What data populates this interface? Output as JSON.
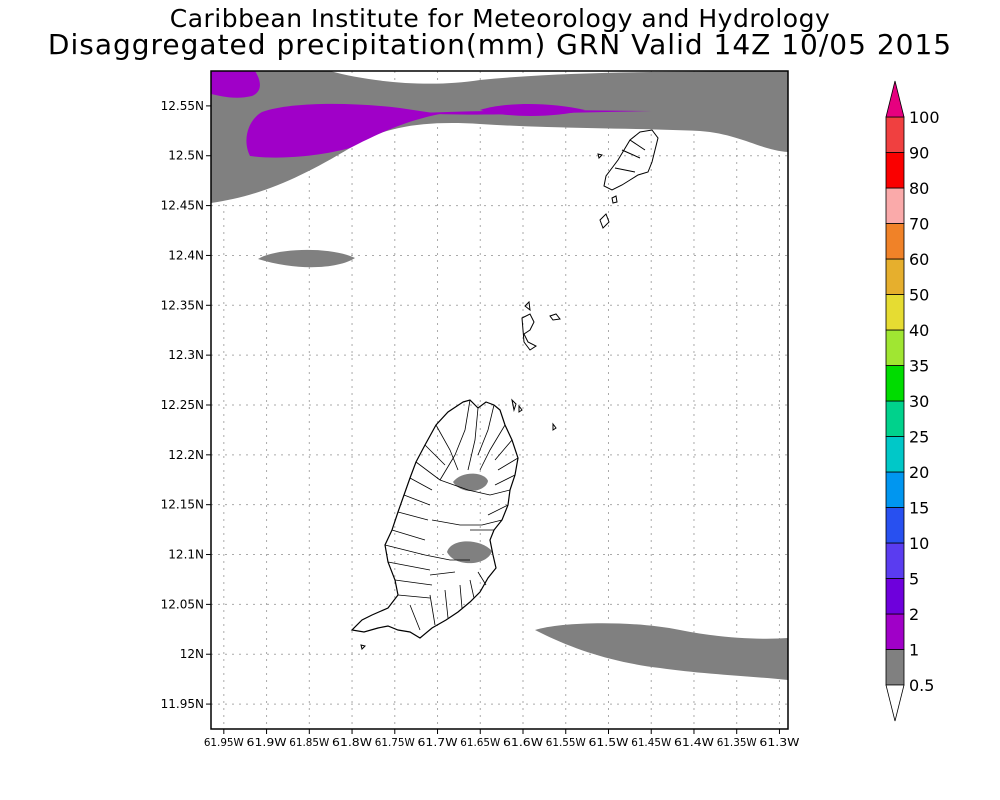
{
  "header": {
    "institute": "Caribbean Institute for Meteorology and Hydrology",
    "product": "Disaggregated precipitation(mm) GRN Valid 14Z 10/05 2015"
  },
  "map": {
    "lat_labels": [
      "12.55N",
      "12.5N",
      "12.45N",
      "12.4N",
      "12.35N",
      "12.3N",
      "12.25N",
      "12.2N",
      "12.15N",
      "12.1N",
      "12.05N",
      "12N",
      "11.95N"
    ],
    "lon_labels": [
      "61.95W",
      "61.9W",
      "61.85W",
      "61.8W",
      "61.75W",
      "61.7W",
      "61.65W",
      "61.6W",
      "61.55W",
      "61.5W",
      "61.45W",
      "61.4W",
      "61.35W",
      "61.3W"
    ],
    "lat_range": [
      11.925,
      12.585
    ],
    "lon_range": [
      -61.965,
      -61.29
    ]
  },
  "legend": {
    "levels": [
      "0.5",
      "1",
      "2",
      "5",
      "10",
      "15",
      "20",
      "25",
      "30",
      "35",
      "40",
      "50",
      "60",
      "70",
      "80",
      "90",
      "100"
    ],
    "colors": {
      "0.5-1": "#808080",
      "1-2": "#a000c8",
      "2-5": "#6e00dc",
      "5-10": "#5a3cf0",
      "10-15": "#2850f0",
      "15-20": "#0096f0",
      "20-25": "#00c8c8",
      "25-30": "#00d28c",
      "30-35": "#00dc00",
      "35-40": "#a0e632",
      "40-50": "#e6dc32",
      "50-60": "#e6af2d",
      "60-70": "#f08228",
      "70-80": "#faaaaa",
      "80-90": "#fa0000",
      "90-100": "#f04040",
      ">100": "#e6007f",
      "<0.5": "#ffffff"
    }
  }
}
